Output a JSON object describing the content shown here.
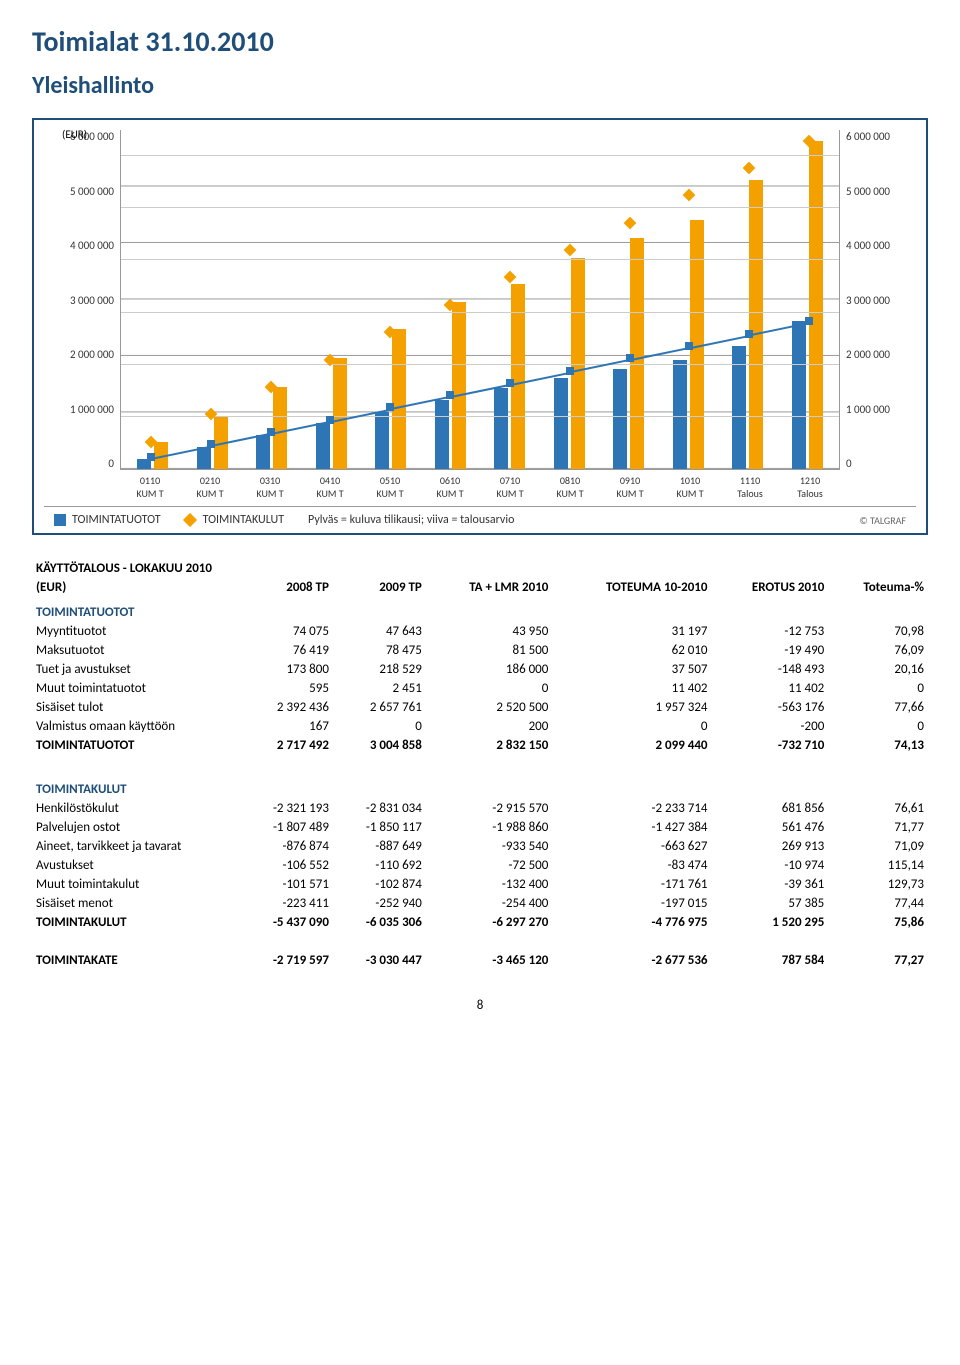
{
  "title": "Toimialat 31.10.2010",
  "subtitle": "Yleishallinto",
  "chart": {
    "ylabel_left": "(EUR)",
    "ylabel_right": "",
    "ymax": 6500000,
    "yticks": [
      "6 000 000",
      "5 000 000",
      "4 000 000",
      "3 000 000",
      "2 000 000",
      "1 000 000",
      "0"
    ],
    "xlabels": [
      "0110\nKUM T",
      "0210\nKUM T",
      "0310\nKUM T",
      "0410\nKUM T",
      "0510\nKUM T",
      "0610\nKUM T",
      "0710\nKUM T",
      "0810\nKUM T",
      "0910\nKUM T",
      "1010\nKUM T",
      "1110\nTalous",
      "1210\nTalous"
    ],
    "blue_bars": [
      200000,
      430000,
      650000,
      880000,
      1090000,
      1330000,
      1560000,
      1750000,
      1920000,
      2099440,
      2350000,
      2832150
    ],
    "orange_bars": [
      510000,
      1020000,
      1570000,
      2120000,
      2680000,
      3200000,
      3550000,
      4050000,
      4420000,
      4776975,
      5550000,
      6297270
    ],
    "blue_line": [
      236000,
      472000,
      708000,
      944000,
      1180000,
      1416000,
      1652000,
      1888000,
      2124000,
      2360000,
      2596000,
      2832150
    ],
    "orange_line": [
      524000,
      1049000,
      1574000,
      2099000,
      2624000,
      3149000,
      3673000,
      4198000,
      4723000,
      5248000,
      5772000,
      6297270
    ],
    "bar_blue_color": "#2e75b6",
    "bar_orange_color": "#f4a100",
    "legend_blue": "TOIMINTATUOTOT",
    "legend_orange": "TOIMINTAKULUT",
    "legend_note": "Pylväs = kuluva tilikausi; viiva  = talousarvio",
    "copyright": "© TALGRAF"
  },
  "table": {
    "header_title": "KÄYTTÖTALOUS - LOKAKUU 2010",
    "header_sub": "(EUR)",
    "cols": [
      "2008 TP",
      "2009 TP",
      "TA + LMR 2010",
      "TOTEUMA 10-2010",
      "EROTUS 2010",
      "Toteuma-%"
    ],
    "sections": [
      {
        "name": "TOIMINTATUOTOT",
        "rows": [
          [
            "Myyntituotot",
            "74 075",
            "47 643",
            "43 950",
            "31 197",
            "-12 753",
            "70,98"
          ],
          [
            "Maksutuotot",
            "76 419",
            "78 475",
            "81 500",
            "62 010",
            "-19 490",
            "76,09"
          ],
          [
            "Tuet ja avustukset",
            "173 800",
            "218 529",
            "186 000",
            "37 507",
            "-148 493",
            "20,16"
          ],
          [
            "Muut toimintatuotot",
            "595",
            "2 451",
            "0",
            "11 402",
            "11 402",
            "0"
          ],
          [
            "Sisäiset tulot",
            "2 392 436",
            "2 657 761",
            "2 520 500",
            "1 957 324",
            "-563 176",
            "77,66"
          ],
          [
            "Valmistus omaan käyttöön",
            "167",
            "0",
            "200",
            "0",
            "-200",
            "0"
          ]
        ],
        "total": [
          "TOIMINTATUOTOT",
          "2 717 492",
          "3 004 858",
          "2 832 150",
          "2 099 440",
          "-732 710",
          "74,13"
        ]
      },
      {
        "name": "TOIMINTAKULUT",
        "rows": [
          [
            "Henkilöstökulut",
            "-2 321 193",
            "-2 831 034",
            "-2 915 570",
            "-2 233 714",
            "681 856",
            "76,61"
          ],
          [
            "Palvelujen ostot",
            "-1 807 489",
            "-1 850 117",
            "-1 988 860",
            "-1 427 384",
            "561 476",
            "71,77"
          ],
          [
            "Aineet, tarvikkeet ja tavarat",
            "-876 874",
            "-887 649",
            "-933 540",
            "-663 627",
            "269 913",
            "71,09"
          ],
          [
            "Avustukset",
            "-106 552",
            "-110 692",
            "-72 500",
            "-83 474",
            "-10 974",
            "115,14"
          ],
          [
            "Muut toimintakulut",
            "-101 571",
            "-102 874",
            "-132 400",
            "-171 761",
            "-39 361",
            "129,73"
          ],
          [
            "Sisäiset menot",
            "-223 411",
            "-252 940",
            "-254 400",
            "-197 015",
            "57 385",
            "77,44"
          ]
        ],
        "total": [
          "TOIMINTAKULUT",
          "-5 437 090",
          "-6 035 306",
          "-6 297 270",
          "-4 776 975",
          "1 520 295",
          "75,86"
        ]
      }
    ],
    "footer": [
      "TOIMINTAKATE",
      "-2 719 597",
      "-3 030 447",
      "-3 465 120",
      "-2 677 536",
      "787 584",
      "77,27"
    ]
  },
  "page_number": "8"
}
